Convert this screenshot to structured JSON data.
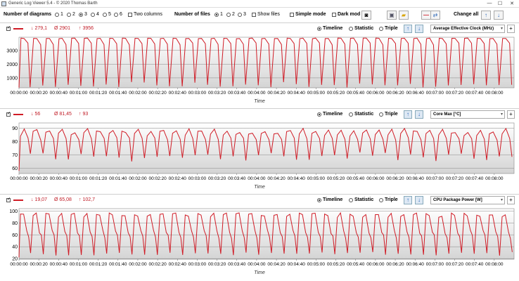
{
  "window": {
    "title": "Generic Log Viewer 5.4 - © 2020 Thomas Barth",
    "min": "—",
    "max": "☐",
    "close": "✕"
  },
  "toolbar": {
    "diagrams_label": "Number of diagrams",
    "diagram_options": [
      "1",
      "2",
      "3",
      "4",
      "5",
      "6"
    ],
    "diagram_selected": "3",
    "two_columns_label": "Two columns",
    "files_label": "Number of files",
    "file_options": [
      "1",
      "2",
      "3"
    ],
    "file_selected": "1",
    "show_files_label": "Show files",
    "simple_mode_label": "Simple mode",
    "dark_mode_label": "Dark mod",
    "change_all_label": "Change all"
  },
  "colors": {
    "line": "#d01c26",
    "stat_text": "#c01a24",
    "plot_bg_top": "#ffffff",
    "plot_bg_bottom": "#d4d4d4"
  },
  "x_ticks": [
    "00:00:00",
    "00:00:20",
    "00:00:40",
    "00:01:00",
    "00:01:20",
    "00:01:40",
    "00:02:00",
    "00:02:20",
    "00:02:40",
    "00:03:00",
    "00:03:20",
    "00:03:40",
    "00:04:00",
    "00:04:20",
    "00:04:40",
    "00:05:00",
    "00:05:20",
    "00:05:40",
    "00:06:00",
    "00:06:20",
    "00:06:40",
    "00:07:00",
    "00:07:20",
    "00:07:40",
    "00:08:00"
  ],
  "x_max_seconds": 500,
  "panels": [
    {
      "min": "↓ 279,1",
      "avg": "Ø 2901",
      "max": "↑ 3956",
      "modes": [
        "Timeline",
        "Statistic",
        "Triple"
      ],
      "sensor": "Average Effective Clock (MHz)",
      "xlabel": "Time",
      "yticks": [
        1000,
        2000,
        3000
      ],
      "ylim": [
        280,
        3960
      ],
      "chart_data": {
        "type": "line",
        "pattern": "clock",
        "period_s": 12.8,
        "high": 3900,
        "mid": 3400,
        "low": 300
      }
    },
    {
      "min": "↓ 56",
      "avg": "Ø 81,45",
      "max": "↑ 93",
      "modes": [
        "Timeline",
        "Statistic",
        "Triple"
      ],
      "sensor": "Core Max [°C]",
      "xlabel": "Time",
      "yticks": [
        60,
        70,
        80,
        90
      ],
      "ylim": [
        56,
        94
      ],
      "chart_data": {
        "type": "line",
        "pattern": "temp",
        "period_s": 12.8,
        "high": 90,
        "mid": 81,
        "low": 65
      }
    },
    {
      "min": "↓ 19,07",
      "avg": "Ø 65,08",
      "max": "↑ 102,7",
      "modes": [
        "Timeline",
        "Statistic",
        "Triple"
      ],
      "sensor": "CPU Package Power [W]",
      "xlabel": "Time",
      "yticks": [
        20,
        40,
        60,
        80,
        100
      ],
      "ylim": [
        19,
        104
      ],
      "chart_data": {
        "type": "line",
        "pattern": "power",
        "period_s": 12.8,
        "high": 97,
        "mid": 62,
        "low": 25
      }
    }
  ]
}
